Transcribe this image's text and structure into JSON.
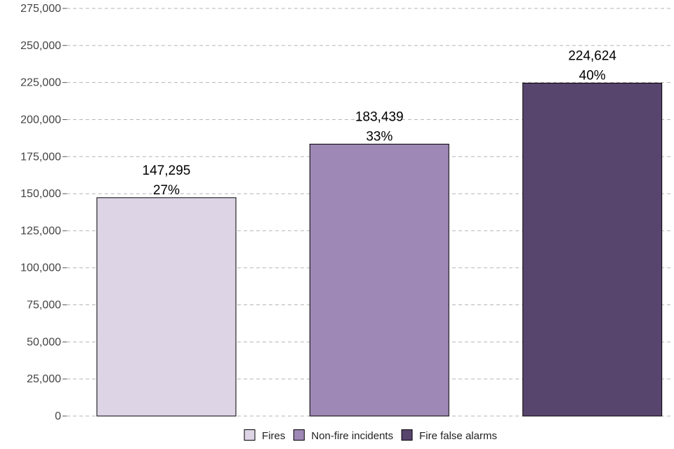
{
  "chart_data": {
    "type": "bar",
    "title": "",
    "xlabel": "",
    "ylabel": "",
    "categories": [
      "Fires",
      "Non-fire incidents",
      "Fire false alarms"
    ],
    "values": [
      147295,
      183439,
      224624
    ],
    "value_labels": [
      "147,295",
      "183,439",
      "224,624"
    ],
    "percent_labels": [
      "27%",
      "33%",
      "40%"
    ],
    "colors": [
      "#ddd5e6",
      "#9e88b5",
      "#58456e"
    ],
    "ylim": [
      0,
      275000
    ],
    "yticks": [
      0,
      25000,
      50000,
      75000,
      100000,
      125000,
      150000,
      175000,
      200000,
      225000,
      250000,
      275000
    ],
    "ytick_labels": [
      "0",
      "25,000",
      "50,000",
      "75,000",
      "100,000",
      "125,000",
      "150,000",
      "175,000",
      "200,000",
      "225,000",
      "250,000",
      "275,000"
    ],
    "grid": "horizontal dashed",
    "legend": {
      "position": "bottom",
      "entries": [
        "Fires",
        "Non-fire incidents",
        "Fire false alarms"
      ]
    }
  }
}
